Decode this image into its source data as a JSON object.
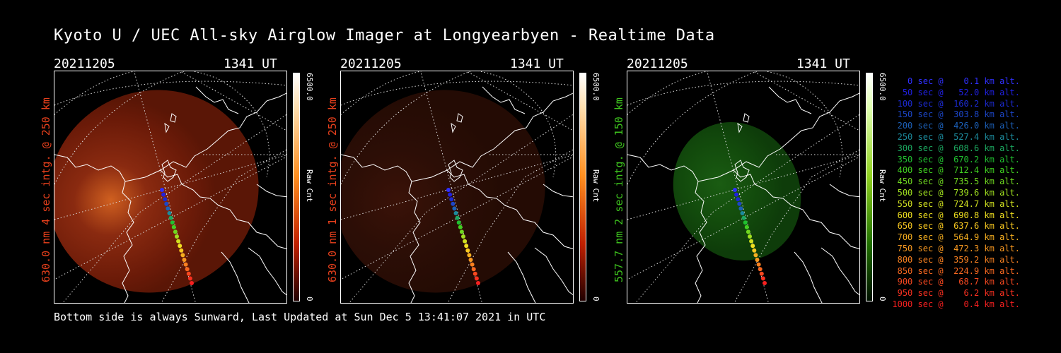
{
  "title": "Kyoto U / UEC All-sky Airglow Imager at Longyearbyen - Realtime Data",
  "footer": "Bottom side is always Sunward, Last Updated at Sun Dec  5 13:41:07 2021 in UTC",
  "panels": [
    {
      "date": "20211205",
      "time": "1341  UT",
      "label": "630.0 nm 4 sec intg. @ 250 km",
      "label_color": "#e8401c",
      "cbar_max": "6500.0",
      "cbar_min": "0",
      "cbar_title": "Raw Cnt",
      "scheme": "red",
      "brightness": 1.0
    },
    {
      "date": "20211205",
      "time": "1341  UT",
      "label": "630.0 nm 1 sec intg. @ 250 km",
      "label_color": "#e8401c",
      "cbar_max": "6500.0",
      "cbar_min": "0",
      "cbar_title": "Raw Cnt",
      "scheme": "red",
      "brightness": 0.35
    },
    {
      "date": "20211205",
      "time": "1341  UT",
      "label": "557.7 nm 2 sec intg. @ 150 km",
      "label_color": "#3ec41e",
      "cbar_max": "6500.0",
      "cbar_min": "0",
      "cbar_title": "Raw Cnt",
      "scheme": "green",
      "brightness": 0.8
    }
  ],
  "legend": [
    {
      "text": "   0 sec @    0.1 km alt.",
      "color": "#3030ff"
    },
    {
      "text": "  50 sec @   52.0 km alt.",
      "color": "#2020e0"
    },
    {
      "text": " 100 sec @  160.2 km alt.",
      "color": "#1c2ad0"
    },
    {
      "text": " 150 sec @  303.8 km alt.",
      "color": "#1c46c8"
    },
    {
      "text": " 200 sec @  426.0 km alt.",
      "color": "#1c60b8"
    },
    {
      "text": " 250 sec @  527.4 km alt.",
      "color": "#1c8a9c"
    },
    {
      "text": " 300 sec @  608.6 km alt.",
      "color": "#1ca860"
    },
    {
      "text": " 350 sec @  670.2 km alt.",
      "color": "#20c030"
    },
    {
      "text": " 400 sec @  712.4 km alt.",
      "color": "#40d020"
    },
    {
      "text": " 450 sec @  735.5 km alt.",
      "color": "#70d820"
    },
    {
      "text": " 500 sec @  739.6 km alt.",
      "color": "#a0e020"
    },
    {
      "text": " 550 sec @  724.7 km alt.",
      "color": "#d0e020"
    },
    {
      "text": " 600 sec @  690.8 km alt.",
      "color": "#f0e020"
    },
    {
      "text": " 650 sec @  637.6 km alt.",
      "color": "#f8c820"
    },
    {
      "text": " 700 sec @  564.9 km alt.",
      "color": "#f8b020"
    },
    {
      "text": " 750 sec @  472.3 km alt.",
      "color": "#f89820"
    },
    {
      "text": " 800 sec @  359.2 km alt.",
      "color": "#f88020"
    },
    {
      "text": " 850 sec @  224.9 km alt.",
      "color": "#f86820"
    },
    {
      "text": " 900 sec @   68.7 km alt.",
      "color": "#f84820"
    },
    {
      "text": " 950 sec @    6.2 km alt.",
      "color": "#f83020"
    },
    {
      "text": "1000 sec @    0.4 km alt.",
      "color": "#f82020"
    }
  ]
}
